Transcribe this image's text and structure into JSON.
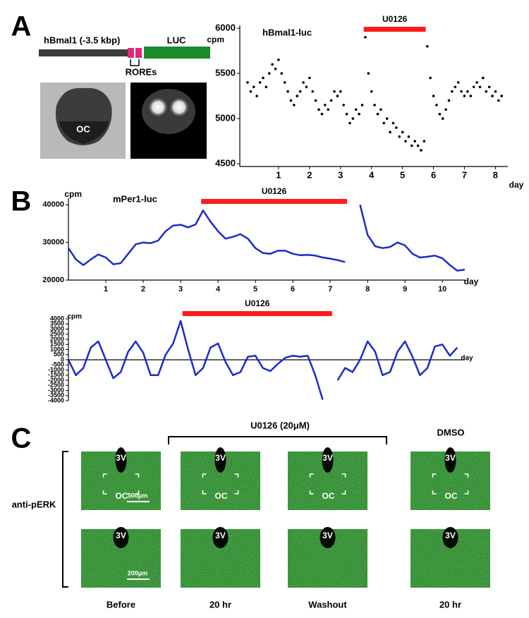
{
  "panel_labels": [
    "A",
    "B",
    "C"
  ],
  "panel_a": {
    "promoter": "hBmal1 (-3.5 kbp)",
    "reporter": "LUC",
    "elements": "ROREs",
    "region": "OC"
  },
  "panel_c": {
    "treatment": "U0126 (20μM)",
    "control": "DMSO",
    "stain": "anti-pERK",
    "conditions": [
      "Before",
      "20 hr",
      "Washout",
      "20 hr"
    ],
    "ventricle": "3V",
    "chiasm": "OC",
    "scale_bars": [
      "500μm",
      "200μm"
    ]
  },
  "chart_data": [
    {
      "type": "scatter",
      "title": "hBmal1-luc",
      "x_label": "day",
      "y_label": "cpm",
      "color": "#000000",
      "x": [
        0,
        0.1,
        0.2,
        0.3,
        0.4,
        0.5,
        0.6,
        0.7,
        0.8,
        0.9,
        1,
        1.1,
        1.2,
        1.3,
        1.4,
        1.5,
        1.6,
        1.7,
        1.8,
        1.9,
        2,
        2.1,
        2.2,
        2.3,
        2.4,
        2.5,
        2.6,
        2.7,
        2.8,
        2.9,
        3,
        3.1,
        3.2,
        3.3,
        3.4,
        3.5,
        3.6,
        3.7,
        3.8,
        3.9,
        4,
        4.1,
        4.2,
        4.3,
        4.4,
        4.5,
        4.6,
        4.7,
        4.8,
        4.9,
        5,
        5.1,
        5.2,
        5.3,
        5.4,
        5.5,
        5.6,
        5.7,
        5.8,
        5.9,
        6,
        6.1,
        6.2,
        6.3,
        6.4,
        6.5,
        6.6,
        6.7,
        6.8,
        6.9,
        7,
        7.1,
        7.2,
        7.3,
        7.4,
        7.5,
        7.6,
        7.7,
        7.8,
        7.9,
        8,
        8.1,
        8.2
      ],
      "values": [
        5400,
        5300,
        5350,
        5250,
        5400,
        5450,
        5350,
        5500,
        5600,
        5550,
        5650,
        5500,
        5400,
        5300,
        5200,
        5150,
        5250,
        5300,
        5400,
        5350,
        5450,
        5300,
        5200,
        5100,
        5050,
        5150,
        5100,
        5200,
        5300,
        5250,
        5300,
        5150,
        5050,
        4950,
        5000,
        5100,
        5050,
        5150,
        5900,
        5500,
        5300,
        5150,
        5050,
        5100,
        4950,
        5000,
        4850,
        4950,
        4900,
        4800,
        4850,
        4750,
        4800,
        4700,
        4750,
        4700,
        4650,
        4750,
        5800,
        5450,
        5250,
        5150,
        5050,
        5000,
        5100,
        5200,
        5300,
        5350,
        5400,
        5300,
        5250,
        5300,
        5250,
        5350,
        5400,
        5350,
        5450,
        5300,
        5350,
        5250,
        5300,
        5200,
        5250
      ],
      "xlim": [
        -0.25,
        8.4
      ],
      "ylim": [
        4470,
        6000
      ],
      "xticks": [
        1,
        2,
        3,
        4,
        5,
        6,
        7,
        8
      ],
      "yticks": [
        4500,
        5000,
        5500,
        6000
      ],
      "annotation": {
        "text": "U0126",
        "start": 3.75,
        "end": 5.75,
        "color": "#ff1a1a"
      }
    },
    {
      "type": "line",
      "title": "mPer1-luc",
      "x_label": "day",
      "y_label": "cpm",
      "color": "#1a2dc8",
      "x": [
        0,
        0.2,
        0.4,
        0.6,
        0.8,
        1,
        1.2,
        1.4,
        1.6,
        1.8,
        2,
        2.2,
        2.4,
        2.6,
        2.8,
        3,
        3.2,
        3.4,
        3.6,
        3.8,
        4,
        4.2,
        4.4,
        4.6,
        4.8,
        5,
        5.2,
        5.4,
        5.6,
        5.8,
        6,
        6.2,
        6.4,
        6.6,
        6.8,
        7,
        7.2,
        7.4,
        7.6,
        7.8,
        8,
        8.2,
        8.4,
        8.6,
        8.8,
        9,
        9.2,
        9.4,
        9.6,
        9.8,
        10,
        10.2,
        10.4,
        10.6
      ],
      "values": [
        28500,
        25500,
        24000,
        25500,
        26800,
        26000,
        24200,
        24500,
        27000,
        29500,
        30000,
        29800,
        30500,
        33000,
        34500,
        34700,
        34000,
        34800,
        38500,
        35500,
        33000,
        31000,
        31500,
        32200,
        31000,
        28500,
        27200,
        27000,
        27800,
        27800,
        27000,
        26600,
        26700,
        26500,
        26000,
        25700,
        25300,
        24800,
        null,
        40000,
        32000,
        29000,
        28500,
        28800,
        30000,
        29200,
        27000,
        26000,
        26200,
        26500,
        25800,
        24000,
        22500,
        22800
      ],
      "xlim": [
        0,
        10.6
      ],
      "ylim": [
        20000,
        41000
      ],
      "xticks": [
        1,
        2,
        3,
        4,
        5,
        6,
        7,
        8,
        9,
        10
      ],
      "yticks": [
        20000,
        30000,
        40000
      ],
      "annotation": {
        "text": "U0126",
        "start": 3.55,
        "end": 7.45,
        "color": "#ff1a1a"
      }
    },
    {
      "type": "line",
      "x_label": "day",
      "y_label": "cpm",
      "color": "#1a2dc8",
      "x": [
        0,
        0.2,
        0.4,
        0.6,
        0.8,
        1,
        1.2,
        1.4,
        1.6,
        1.8,
        2,
        2.2,
        2.4,
        2.6,
        2.8,
        3,
        3.2,
        3.4,
        3.6,
        3.8,
        4,
        4.2,
        4.4,
        4.6,
        4.8,
        5,
        5.2,
        5.4,
        5.6,
        5.8,
        6,
        6.2,
        6.4,
        6.6,
        6.8,
        7,
        7.2,
        7.4,
        7.6,
        7.8,
        8,
        8.2,
        8.4,
        8.6,
        8.8,
        9,
        9.2,
        9.4,
        9.6,
        9.8,
        10,
        10.2,
        10.4
      ],
      "values": [
        0,
        -1500,
        -800,
        1200,
        1800,
        0,
        -1800,
        -1200,
        800,
        1800,
        700,
        -1500,
        -1500,
        500,
        1600,
        3800,
        1000,
        -1500,
        -800,
        1200,
        1600,
        -200,
        -1500,
        -1200,
        300,
        400,
        -800,
        -1100,
        -400,
        200,
        400,
        300,
        400,
        -1500,
        -3900,
        null,
        -2000,
        -800,
        -1200,
        0,
        1800,
        800,
        -1500,
        -1200,
        800,
        1800,
        300,
        -1500,
        -800,
        1300,
        1500,
        400,
        1200
      ],
      "xlim": [
        0,
        10.6
      ],
      "ylim": [
        -4000,
        4000
      ],
      "yticks": [
        -4000,
        -3500,
        -3000,
        -2500,
        -2000,
        -1500,
        -1000,
        -500,
        0,
        500,
        1000,
        1500,
        2000,
        2500,
        3000,
        3500,
        4000
      ],
      "annotation": {
        "text": "U0126",
        "start": 3.05,
        "end": 7.05,
        "color": "#ff1a1a"
      }
    }
  ]
}
